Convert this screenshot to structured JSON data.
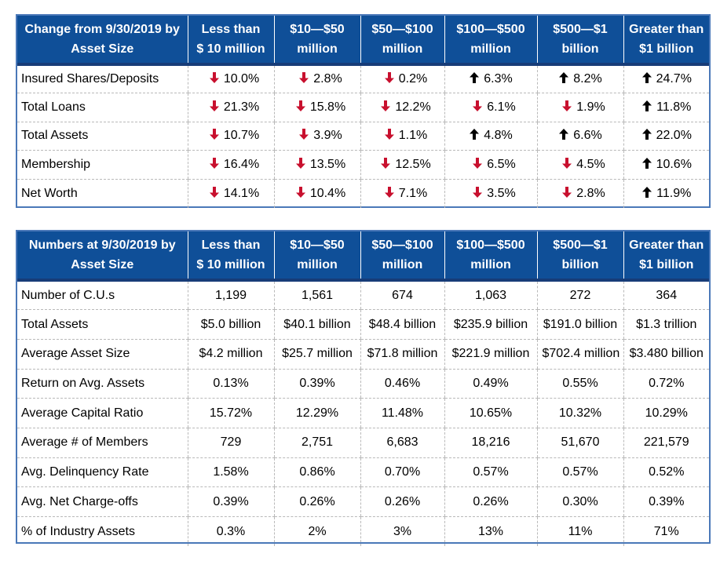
{
  "colors": {
    "header_bg": "#0f4f98",
    "down_arrow": "#c8102e",
    "up_arrow": "#000000",
    "panel_border": "#4a78b8"
  },
  "icons": {
    "down": "arrow-down-icon",
    "up": "arrow-up-icon"
  },
  "change_table": {
    "headers": [
      [
        "Change from 9/30/2019 by",
        "Asset Size"
      ],
      [
        "Less than",
        "$ 10 million"
      ],
      [
        "$10—$50",
        "million"
      ],
      [
        "$50—$100",
        "million"
      ],
      [
        "$100—$500",
        "million"
      ],
      [
        "$500—$1",
        "billion"
      ],
      [
        "Greater than",
        "$1 billion"
      ]
    ],
    "rows": [
      {
        "label": "Insured Shares/Deposits",
        "cells": [
          {
            "dir": "down",
            "value": "10.0%"
          },
          {
            "dir": "down",
            "value": "2.8%"
          },
          {
            "dir": "down",
            "value": "0.2%"
          },
          {
            "dir": "up",
            "value": "6.3%"
          },
          {
            "dir": "up",
            "value": "8.2%"
          },
          {
            "dir": "up",
            "value": "24.7%"
          }
        ]
      },
      {
        "label": "Total Loans",
        "cells": [
          {
            "dir": "down",
            "value": "21.3%"
          },
          {
            "dir": "down",
            "value": "15.8%"
          },
          {
            "dir": "down",
            "value": "12.2%"
          },
          {
            "dir": "down",
            "value": "6.1%"
          },
          {
            "dir": "down",
            "value": "1.9%"
          },
          {
            "dir": "up",
            "value": "11.8%"
          }
        ]
      },
      {
        "label": "Total Assets",
        "cells": [
          {
            "dir": "down",
            "value": "10.7%"
          },
          {
            "dir": "down",
            "value": "3.9%"
          },
          {
            "dir": "down",
            "value": "1.1%"
          },
          {
            "dir": "up",
            "value": "4.8%"
          },
          {
            "dir": "up",
            "value": "6.6%"
          },
          {
            "dir": "up",
            "value": "22.0%"
          }
        ]
      },
      {
        "label": "Membership",
        "cells": [
          {
            "dir": "down",
            "value": "16.4%"
          },
          {
            "dir": "down",
            "value": "13.5%"
          },
          {
            "dir": "down",
            "value": "12.5%"
          },
          {
            "dir": "down",
            "value": "6.5%"
          },
          {
            "dir": "down",
            "value": "4.5%"
          },
          {
            "dir": "up",
            "value": "10.6%"
          }
        ]
      },
      {
        "label": "Net Worth",
        "cells": [
          {
            "dir": "down",
            "value": "14.1%"
          },
          {
            "dir": "down",
            "value": "10.4%"
          },
          {
            "dir": "down",
            "value": "7.1%"
          },
          {
            "dir": "down",
            "value": "3.5%"
          },
          {
            "dir": "down",
            "value": "2.8%"
          },
          {
            "dir": "up",
            "value": "11.9%"
          }
        ]
      }
    ]
  },
  "numbers_table": {
    "headers": [
      [
        "Numbers at 9/30/2019  by",
        "Asset Size"
      ],
      [
        "Less than",
        "$ 10 million"
      ],
      [
        "$10—$50",
        "million"
      ],
      [
        "$50—$100",
        "million"
      ],
      [
        "$100—$500",
        "million"
      ],
      [
        "$500—$1",
        "billion"
      ],
      [
        "Greater than",
        "$1 billion"
      ]
    ],
    "rows": [
      {
        "label": "Number of C.U.s",
        "cells": [
          "1,199",
          "1,561",
          "674",
          "1,063",
          "272",
          "364"
        ]
      },
      {
        "label": "Total Assets",
        "cells": [
          "$5.0 billion",
          "$40.1 billion",
          "$48.4 billion",
          "$235.9 billion",
          "$191.0 billion",
          "$1.3 trillion"
        ]
      },
      {
        "label": "Average Asset Size",
        "cells": [
          "$4.2 million",
          "$25.7 million",
          "$71.8 million",
          "$221.9 million",
          "$702.4 million",
          "$3.480 billion"
        ]
      },
      {
        "label": "Return on Avg. Assets",
        "cells": [
          "0.13%",
          "0.39%",
          "0.46%",
          "0.49%",
          "0.55%",
          "0.72%"
        ]
      },
      {
        "label": "Average Capital Ratio",
        "cells": [
          "15.72%",
          "12.29%",
          "11.48%",
          "10.65%",
          "10.32%",
          "10.29%"
        ]
      },
      {
        "label": "Average # of Members",
        "cells": [
          "729",
          "2,751",
          "6,683",
          "18,216",
          "51,670",
          "221,579"
        ]
      },
      {
        "label": "Avg. Delinquency Rate",
        "cells": [
          "1.58%",
          "0.86%",
          "0.70%",
          "0.57%",
          "0.57%",
          "0.52%"
        ]
      },
      {
        "label": "Avg. Net Charge-offs",
        "cells": [
          "0.39%",
          "0.26%",
          "0.26%",
          "0.26%",
          "0.30%",
          "0.39%"
        ]
      },
      {
        "label": "% of Industry Assets",
        "cells": [
          "0.3%",
          "2%",
          "3%",
          "13%",
          "11%",
          "71%"
        ]
      }
    ]
  }
}
